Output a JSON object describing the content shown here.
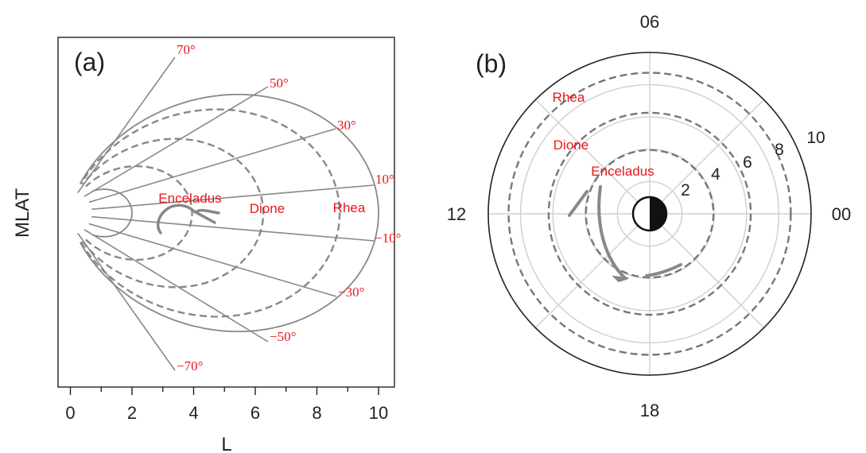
{
  "colors": {
    "axis": "#222222",
    "field_line": "#888888",
    "grid": "#cfcfcf",
    "label": "#e8161d",
    "background": "#ffffff"
  },
  "panel_a": {
    "panel_label": "(a)",
    "xlabel": "L",
    "ylabel": "MLAT",
    "x_ticks": [
      "0",
      "2",
      "4",
      "6",
      "8",
      "10"
    ],
    "xlim": [
      -0.4,
      10.6
    ],
    "moons": [
      {
        "name": "Enceladus",
        "L": 3.95
      },
      {
        "name": "Dione",
        "L": 6.26
      },
      {
        "name": "Rhea",
        "L": 8.74
      }
    ],
    "latitude_lines": [
      {
        "label": "70°",
        "deg": 70
      },
      {
        "label": "50°",
        "deg": 50
      },
      {
        "label": "30°",
        "deg": 30
      },
      {
        "label": "10°",
        "deg": 10
      },
      {
        "label": "−10°",
        "deg": -10
      },
      {
        "label": "−30°",
        "deg": -30
      },
      {
        "label": "−50°",
        "deg": -50
      },
      {
        "label": "−70°",
        "deg": -70
      }
    ]
  },
  "panel_b": {
    "panel_label": "(b)",
    "lt_labels": {
      "top": "06",
      "left": "12",
      "right": "00",
      "bottom": "18"
    },
    "radial_ticks": [
      "2",
      "4",
      "6",
      "8",
      "10"
    ],
    "max_radius": 10,
    "moon_orbits": [
      {
        "name": "Enceladus",
        "r": 3.95
      },
      {
        "name": "Dione",
        "r": 6.26
      },
      {
        "name": "Rhea",
        "r": 8.74
      }
    ]
  }
}
